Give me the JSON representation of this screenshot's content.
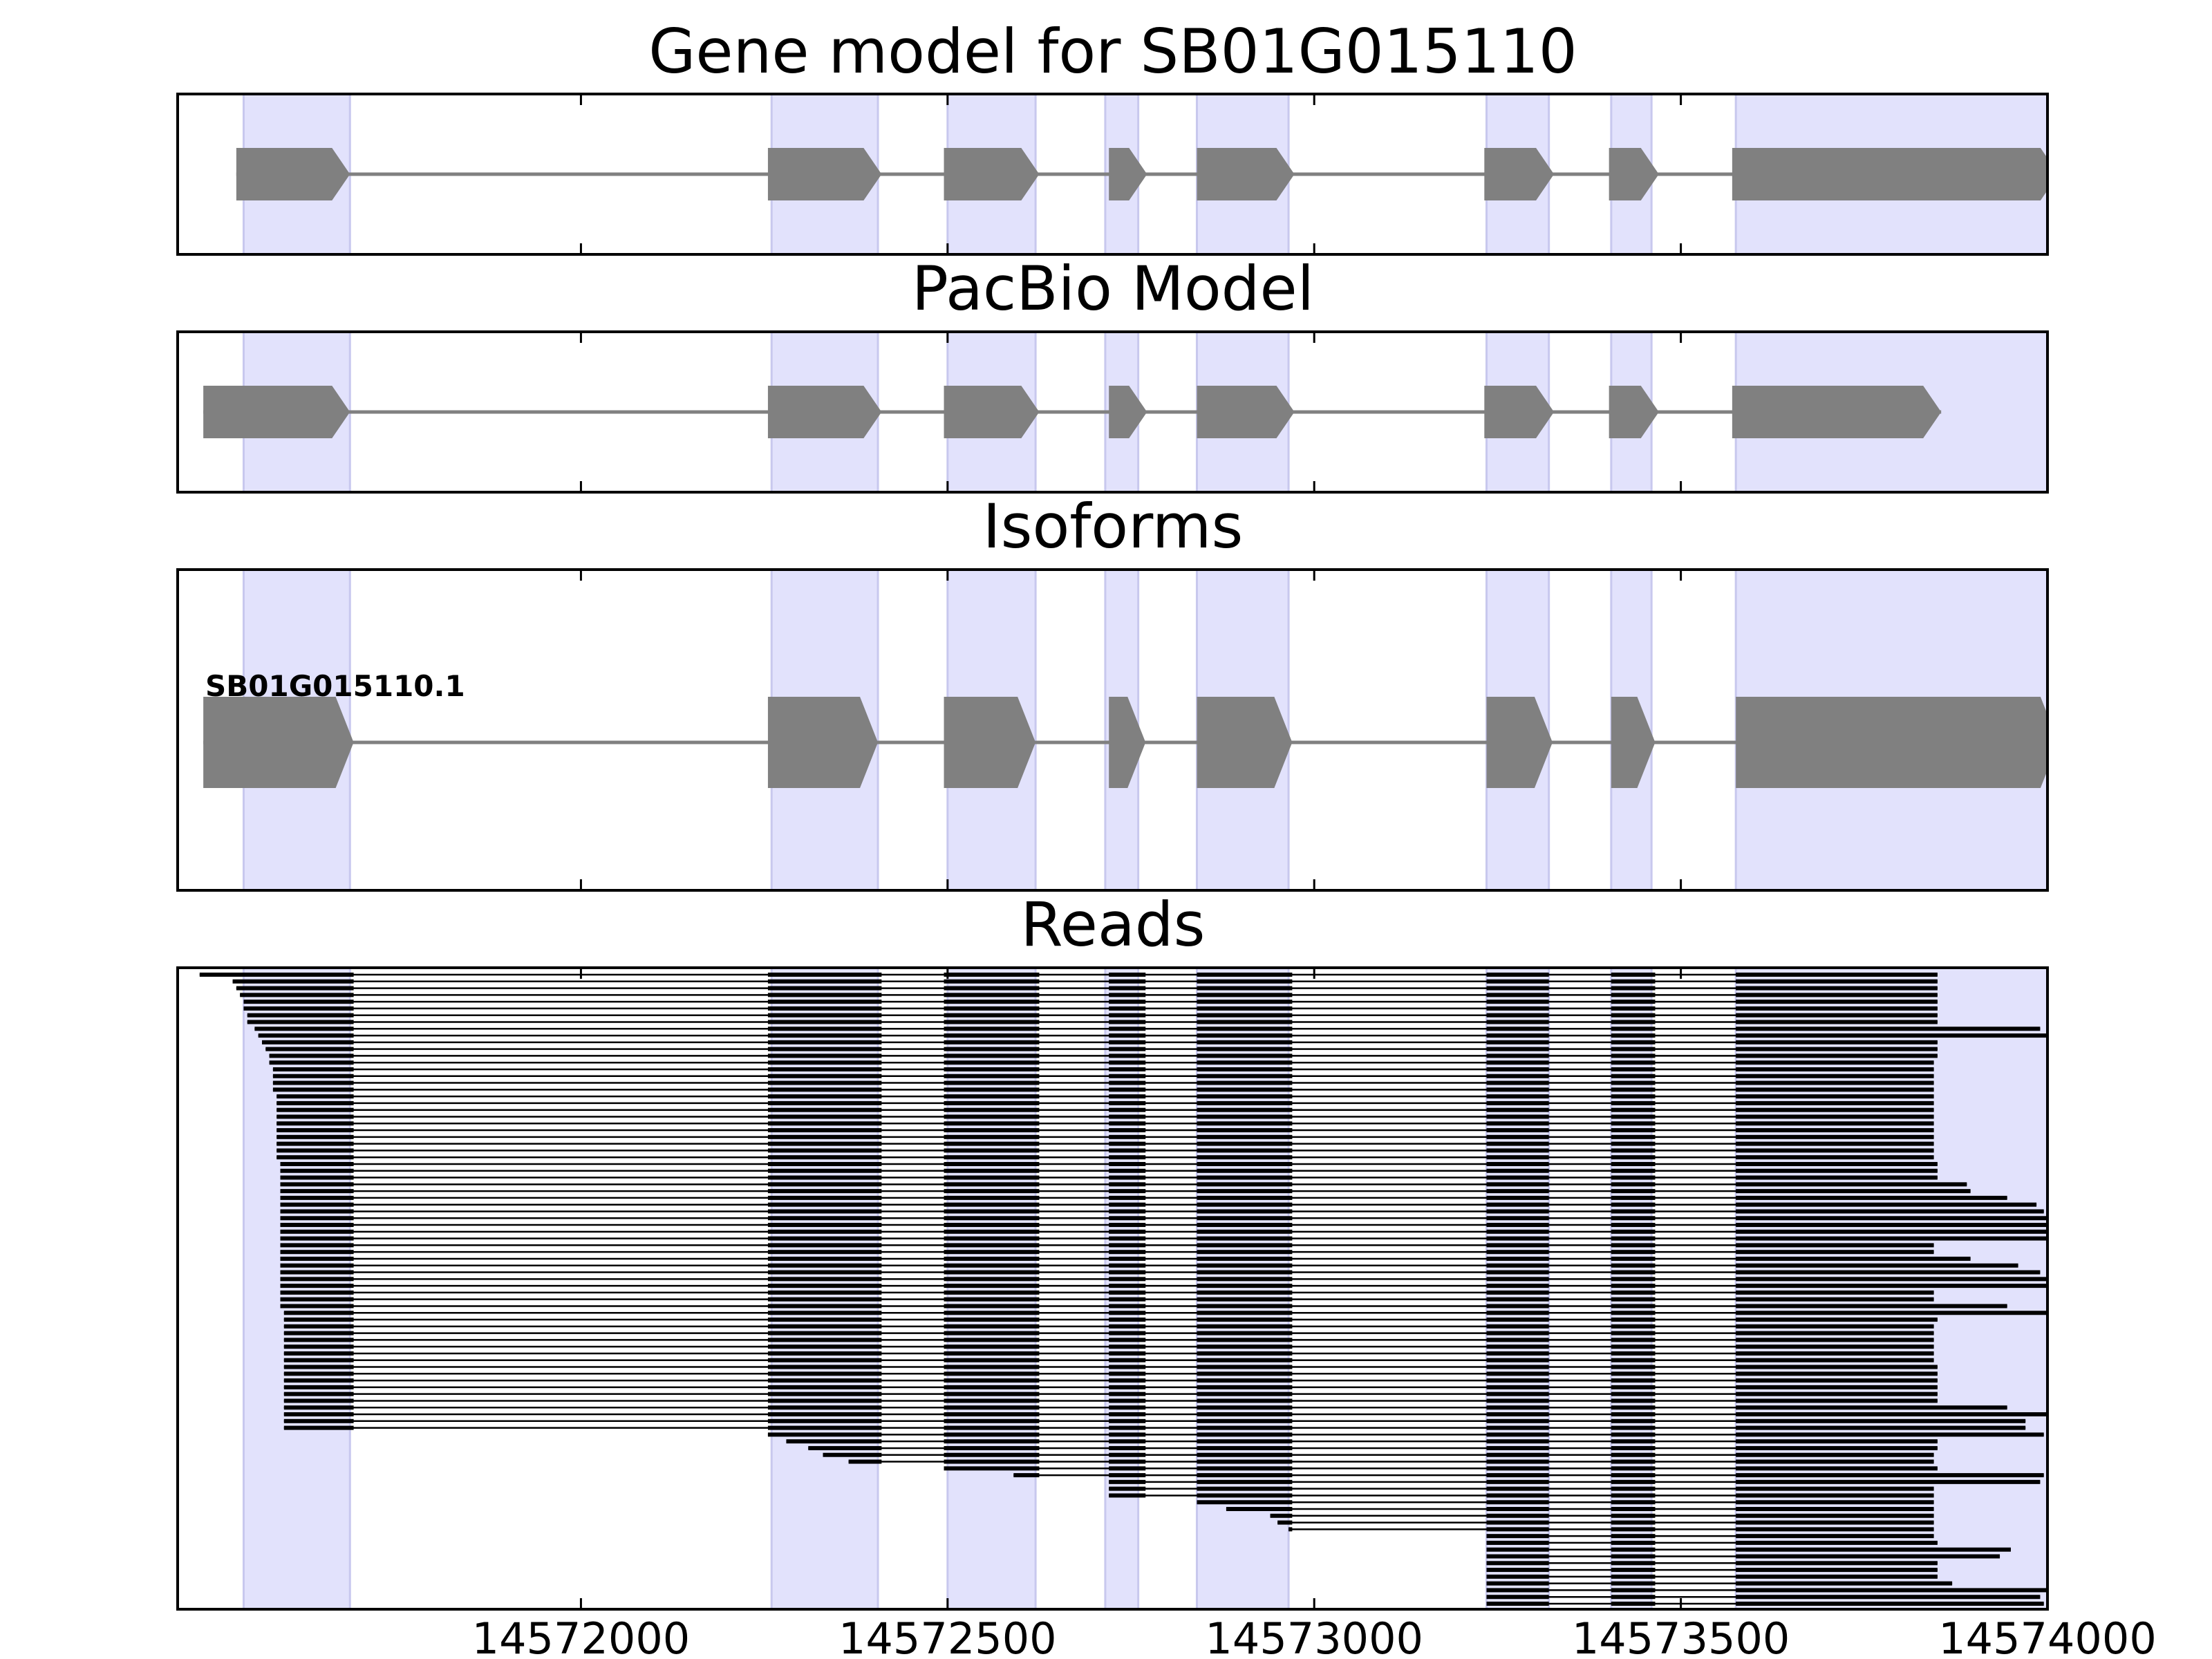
{
  "chart_data": {
    "type": "gene-track",
    "xlim": [
      14571450,
      14574000
    ],
    "xticks": [
      14572000,
      14572500,
      14573000,
      14573500,
      14574000
    ],
    "tick_labels": [
      "14572000",
      "14572500",
      "14573000",
      "14573500",
      "14574000"
    ],
    "highlight_color": "#e2e2fc",
    "feature_color": "#808080",
    "read_color": "#000000",
    "highlight_regions": [
      [
        14571540,
        14571685
      ],
      [
        14572260,
        14572405
      ],
      [
        14572500,
        14572620
      ],
      [
        14572715,
        14572760
      ],
      [
        14572840,
        14572965
      ],
      [
        14573235,
        14573320
      ],
      [
        14573405,
        14573460
      ],
      [
        14573575,
        14574015
      ]
    ],
    "panels": [
      {
        "title": "Gene model for SB01G015110",
        "features": [
          {
            "strand": "+",
            "exons": [
              [
                14571530,
                14571685
              ],
              [
                14572255,
                14572410
              ],
              [
                14572495,
                14572625
              ],
              [
                14572720,
                14572772
              ],
              [
                14572840,
                14572973
              ],
              [
                14573232,
                14573327
              ],
              [
                14573402,
                14573470
              ],
              [
                14573570,
                14574015
              ]
            ]
          }
        ]
      },
      {
        "title": "PacBio Model",
        "features": [
          {
            "strand": "+",
            "exons": [
              [
                14571485,
                14571685
              ],
              [
                14572255,
                14572410
              ],
              [
                14572495,
                14572625
              ],
              [
                14572720,
                14572772
              ],
              [
                14572840,
                14572973
              ],
              [
                14573232,
                14573327
              ],
              [
                14573402,
                14573470
              ],
              [
                14573570,
                14573855
              ]
            ]
          }
        ]
      },
      {
        "title": "Isoforms",
        "features": [
          {
            "label": "SB01G015110.1",
            "strand": "+",
            "exons": [
              [
                14571485,
                14571690
              ],
              [
                14572255,
                14572405
              ],
              [
                14572495,
                14572620
              ],
              [
                14572720,
                14572770
              ],
              [
                14572840,
                14572970
              ],
              [
                14573235,
                14573325
              ],
              [
                14573405,
                14573465
              ],
              [
                14573575,
                14574015
              ]
            ]
          }
        ]
      },
      {
        "title": "Reads",
        "read_count": 94,
        "read_exons_main": [
          [
            14572255,
            14572410
          ],
          [
            14572495,
            14572625
          ],
          [
            14572720,
            14572770
          ],
          [
            14572840,
            14572970
          ],
          [
            14573235,
            14573320
          ],
          [
            14573405,
            14573465
          ],
          [
            14573575,
            14573850
          ]
        ],
        "first_exon_end": 14571690,
        "read_starts": [
          14571480,
          14571525,
          14571530,
          14571535,
          14571540,
          14571540,
          14571545,
          14571545,
          14571555,
          14571560,
          14571565,
          14571570,
          14571575,
          14571575,
          14571580,
          14571580,
          14571580,
          14571580,
          14571585,
          14571585,
          14571585,
          14571585,
          14571585,
          14571585,
          14571585,
          14571585,
          14571585,
          14571585,
          14571590,
          14571590,
          14571590,
          14571590,
          14571590,
          14571590,
          14571590,
          14571590,
          14571590,
          14571590,
          14571590,
          14571590,
          14571590,
          14571590,
          14571590,
          14571590,
          14571590,
          14571590,
          14571590,
          14571590,
          14571590,
          14571590,
          14571595,
          14571595,
          14571595,
          14571595,
          14571595,
          14571595,
          14571595,
          14571595,
          14571595,
          14571595,
          14571595,
          14571595,
          14571595,
          14571595,
          14571595,
          14571595,
          14571595,
          14571595,
          14571595,
          14571595,
          14571600,
          14571600,
          14571600,
          14571600,
          14571600,
          14571600,
          14571600,
          14571600,
          14571600,
          14571600,
          14571600,
          14571600,
          14571600,
          14571600,
          14571600,
          14571600,
          14571600,
          14571600,
          14571605,
          14571605,
          14571605,
          14571605,
          14571605,
          14571640
        ],
        "late_starts": [
          14572255,
          14572280,
          14572310,
          14572330,
          14572365,
          14572495,
          14572590,
          14572720,
          14572720,
          14572720,
          14572820,
          14572880,
          14572940,
          14572950,
          14572965,
          14573235,
          14573235,
          14573235,
          14573235,
          14573235,
          14573235,
          14573235,
          14573235,
          14573235,
          14573235,
          14573235
        ],
        "read_ends": [
          14573850,
          14573850,
          14573850,
          14573850,
          14573850,
          14573850,
          14573850,
          14573850,
          14573990,
          14574010,
          14573850,
          14573850,
          14573850,
          14573845,
          14573845,
          14573845,
          14573845,
          14573845,
          14573845,
          14573845,
          14573845,
          14573845,
          14573845,
          14573845,
          14573845,
          14573845,
          14573845,
          14573845,
          14573850,
          14573850,
          14573850,
          14573890,
          14573895,
          14573945,
          14573985,
          14573995,
          14574000,
          14574005,
          14574015,
          14574015,
          14573845,
          14573845,
          14573895,
          14573960,
          14573990,
          14574005,
          14574005,
          14573845,
          14573845,
          14573945,
          14574015,
          14573850,
          14573845,
          14573845,
          14573845,
          14573845,
          14573845,
          14573845,
          14573850,
          14573850,
          14573850,
          14573850,
          14573850,
          14573850,
          14573945,
          14574000,
          14573970,
          14573970,
          14573995,
          14573850,
          14573850,
          14573845,
          14573845,
          14573850,
          14573995,
          14573990,
          14573845,
          14573845,
          14573845,
          14573845,
          14573845,
          14573845,
          14573845,
          14573845,
          14573850,
          14573950,
          14573935,
          14573850,
          14573850,
          14573850,
          14573870,
          14574010,
          14573990,
          14573995
        ]
      }
    ]
  }
}
